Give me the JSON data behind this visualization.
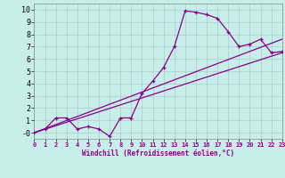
{
  "xlabel": "Windchill (Refroidissement éolien,°C)",
  "background_color": "#c8eeea",
  "grid_color": "#aacccc",
  "line_color": "#880088",
  "xlim": [
    0,
    23
  ],
  "ylim": [
    -0.5,
    10.5
  ],
  "xticks": [
    0,
    1,
    2,
    3,
    4,
    5,
    6,
    7,
    8,
    9,
    10,
    11,
    12,
    13,
    14,
    15,
    16,
    17,
    18,
    19,
    20,
    21,
    22,
    23
  ],
  "yticks": [
    0,
    1,
    2,
    3,
    4,
    5,
    6,
    7,
    8,
    9,
    10
  ],
  "ytick_labels": [
    "-0",
    "1",
    "2",
    "3",
    "4",
    "5",
    "6",
    "7",
    "8",
    "9",
    "10"
  ],
  "line1_x": [
    0,
    1,
    2,
    3,
    4,
    5,
    6,
    7,
    8,
    9,
    10,
    11,
    12,
    13,
    14,
    15,
    16,
    17,
    18,
    19,
    20,
    21,
    22,
    23
  ],
  "line1_y": [
    0.0,
    0.3,
    1.2,
    1.2,
    0.3,
    0.5,
    0.3,
    -0.3,
    1.2,
    1.2,
    3.2,
    4.2,
    5.3,
    7.0,
    9.9,
    9.8,
    9.6,
    9.3,
    8.2,
    7.0,
    7.2,
    7.6,
    6.5,
    6.6
  ],
  "line2_x": [
    0,
    23
  ],
  "line2_y": [
    0.0,
    6.5
  ],
  "line3_x": [
    0,
    23
  ],
  "line3_y": [
    0.0,
    7.6
  ],
  "xlabel_fontsize": 5.5,
  "tick_fontsize_x": 5,
  "tick_fontsize_y": 6
}
